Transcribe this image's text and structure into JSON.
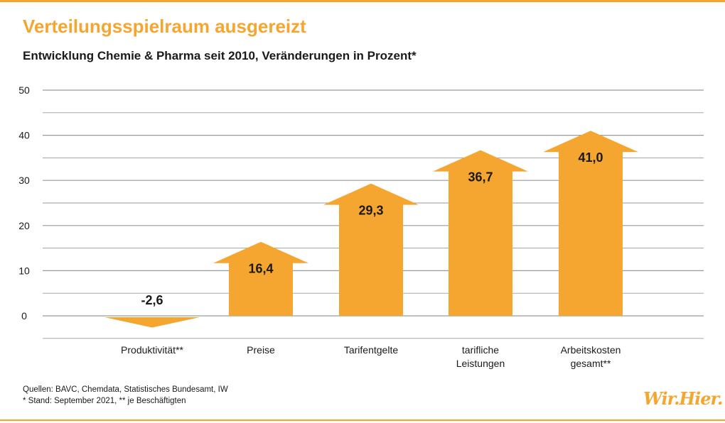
{
  "title": "Verteilungsspielraum ausgereizt",
  "subtitle": "Entwicklung Chemie & Pharma seit 2010, Veränderungen in Prozent*",
  "footnotes": {
    "sources": "Quellen: BAVC, Chemdata, Statistisches Bundesamt, IW",
    "note": "* Stand: September 2021, ** je Beschäftigten"
  },
  "logo_text": "Wir.Hier.",
  "colors": {
    "accent": "#f5a630",
    "grid": "#9a9a9a",
    "text": "#1a1a1a"
  },
  "chart_data": {
    "type": "bar",
    "title": "Verteilungsspielraum ausgereizt",
    "subtitle": "Entwicklung Chemie & Pharma seit 2010, Veränderungen in Prozent*",
    "categories": [
      [
        "Produktivität**"
      ],
      [
        "Preise"
      ],
      [
        "Tarifentgelte"
      ],
      [
        "tarifliche",
        "Leistungen"
      ],
      [
        "Arbeitskosten",
        "gesamt**"
      ]
    ],
    "values": [
      -2.6,
      16.4,
      29.3,
      36.7,
      41.0
    ],
    "value_labels": [
      "-2,6",
      "16,4",
      "29,3",
      "36,7",
      "41,0"
    ],
    "y_ticks": [
      0,
      10,
      20,
      30,
      40,
      50
    ],
    "ylim": [
      -5,
      50
    ],
    "grid": true,
    "marker": "arrow"
  }
}
